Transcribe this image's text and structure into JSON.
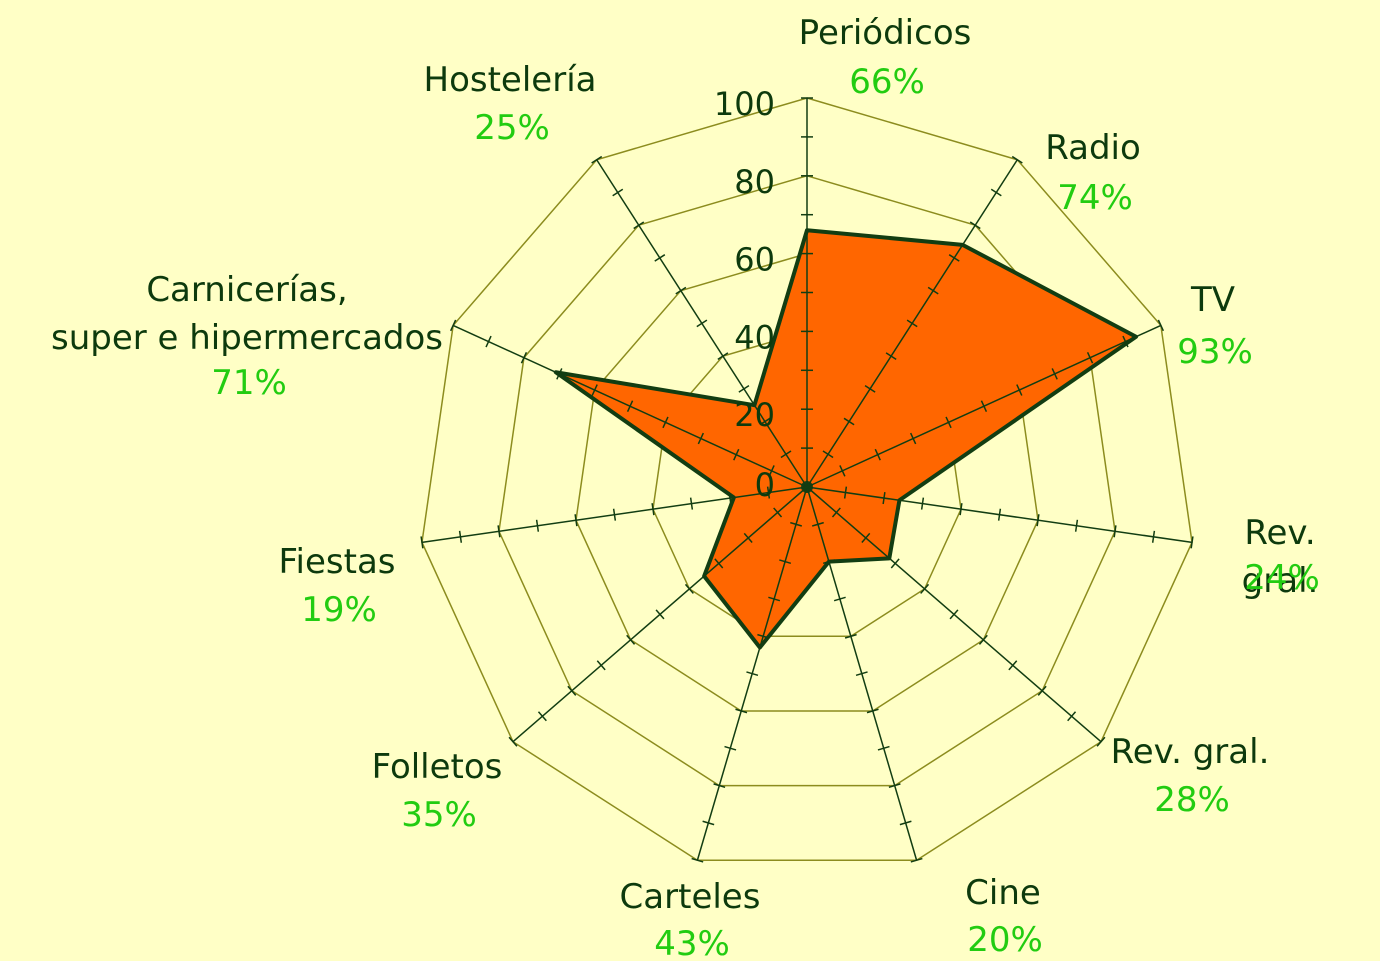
{
  "chart_data": {
    "type": "radar",
    "categories": [
      "Periódicos",
      "Radio",
      "TV",
      "Rev. gral.",
      "Rev. gral.",
      "Cine",
      "Carteles",
      "Folletos",
      "Fiestas",
      "Carnicerías,\nsuper e hipermercados",
      "Hostelería"
    ],
    "values": [
      66,
      74,
      93,
      24,
      28,
      20,
      43,
      35,
      19,
      71,
      25
    ],
    "value_labels": [
      "66%",
      "74%",
      "93%",
      "24%",
      "28%",
      "20%",
      "43%",
      "35%",
      "19%",
      "71%",
      "25%"
    ],
    "color": "#ff6600",
    "ylim": [
      0,
      100
    ],
    "yticks": [
      0,
      20,
      40,
      60,
      80,
      100
    ],
    "grid": true
  }
}
